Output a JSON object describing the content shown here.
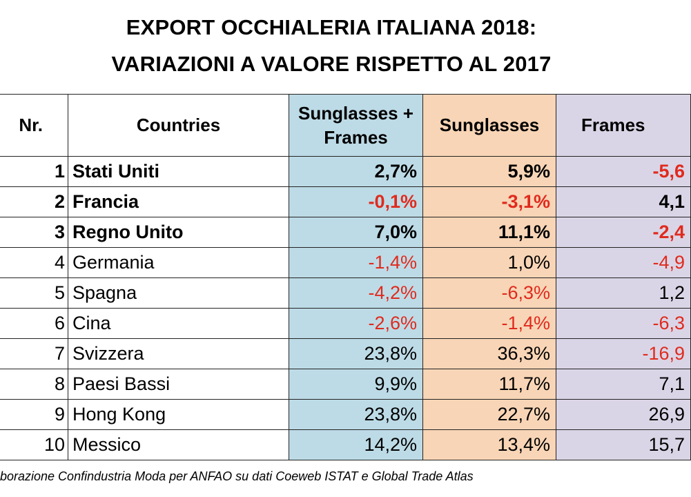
{
  "title": {
    "line1": "EXPORT OCCHIALERIA ITALIANA 2018:",
    "line2": "VARIAZIONI A VALORE RISPETTO AL 2017"
  },
  "table": {
    "headers": {
      "nr": "Nr.",
      "country": "Countries",
      "both_line1": "Sunglasses +",
      "both_line2": "Frames",
      "sunglasses": "Sunglasses",
      "frames": "Frames"
    },
    "rows": [
      {
        "nr": "1",
        "country": "Stati Uniti",
        "both": "2,7%",
        "sunglasses": "5,9%",
        "frames": "-5,6",
        "bold": true
      },
      {
        "nr": "2",
        "country": "Francia",
        "both": "-0,1%",
        "sunglasses": "-3,1%",
        "frames": "4,1",
        "bold": true
      },
      {
        "nr": "3",
        "country": "Regno Unito",
        "both": "7,0%",
        "sunglasses": "11,1%",
        "frames": "-2,4",
        "bold": true
      },
      {
        "nr": "4",
        "country": "Germania",
        "both": "-1,4%",
        "sunglasses": "1,0%",
        "frames": "-4,9",
        "bold": false
      },
      {
        "nr": "5",
        "country": "Spagna",
        "both": "-4,2%",
        "sunglasses": "-6,3%",
        "frames": "1,2",
        "bold": false
      },
      {
        "nr": "6",
        "country": "Cina",
        "both": "-2,6%",
        "sunglasses": "-1,4%",
        "frames": "-6,3",
        "bold": false
      },
      {
        "nr": "7",
        "country": "Svizzera",
        "both": "23,8%",
        "sunglasses": "36,3%",
        "frames": "-16,9",
        "bold": false
      },
      {
        "nr": "8",
        "country": "Paesi Bassi",
        "both": "9,9%",
        "sunglasses": "11,7%",
        "frames": "7,1",
        "bold": false
      },
      {
        "nr": "9",
        "country": "Hong Kong",
        "both": "23,8%",
        "sunglasses": "22,7%",
        "frames": "26,9",
        "bold": false
      },
      {
        "nr": "10",
        "country": "Messico",
        "both": "14,2%",
        "sunglasses": "13,4%",
        "frames": "15,7",
        "bold": false
      }
    ]
  },
  "source": "borazione Confindustria Moda per ANFAO su dati Coeweb ISTAT e Global Trade Atlas",
  "colors": {
    "sunglasses_frames_column": "#bddbe6",
    "sunglasses_column": "#f8d5b6",
    "frames_column": "#dad5e6",
    "negative_value": "#e02a1d"
  }
}
